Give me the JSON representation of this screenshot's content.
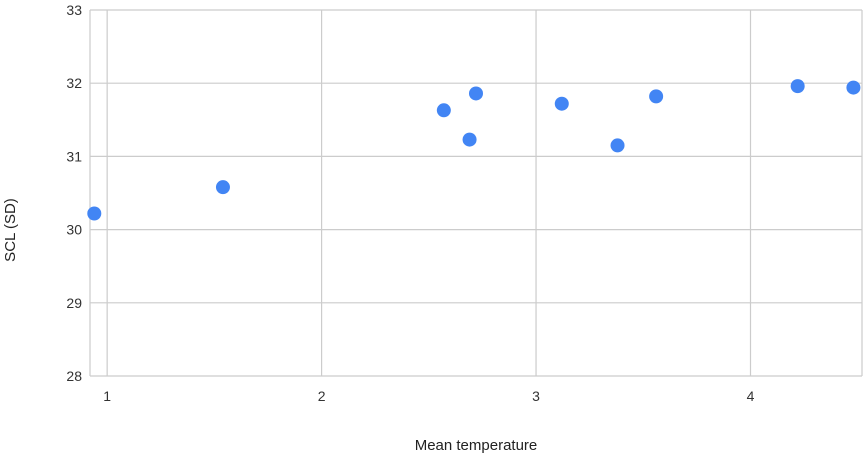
{
  "chart_data": {
    "type": "scatter",
    "title": "",
    "xlabel": "Mean temperature",
    "ylabel": "SCL (SD)",
    "xlim": [
      0.92,
      4.52
    ],
    "ylim": [
      28,
      33
    ],
    "xticks": [
      1,
      2,
      3,
      4
    ],
    "yticks": [
      28,
      29,
      30,
      31,
      32,
      33
    ],
    "grid": true,
    "legend": "none",
    "series": [
      {
        "color": "#4285F4",
        "points": [
          {
            "x": 0.94,
            "y": 30.22
          },
          {
            "x": 1.54,
            "y": 30.58
          },
          {
            "x": 2.57,
            "y": 31.63
          },
          {
            "x": 2.69,
            "y": 31.23
          },
          {
            "x": 2.72,
            "y": 31.86
          },
          {
            "x": 3.12,
            "y": 31.72
          },
          {
            "x": 3.38,
            "y": 31.15
          },
          {
            "x": 3.56,
            "y": 31.82
          },
          {
            "x": 4.22,
            "y": 31.96
          },
          {
            "x": 4.48,
            "y": 31.94
          }
        ]
      }
    ],
    "colors": {
      "grid": "#cccccc",
      "axis": "#333333"
    }
  }
}
